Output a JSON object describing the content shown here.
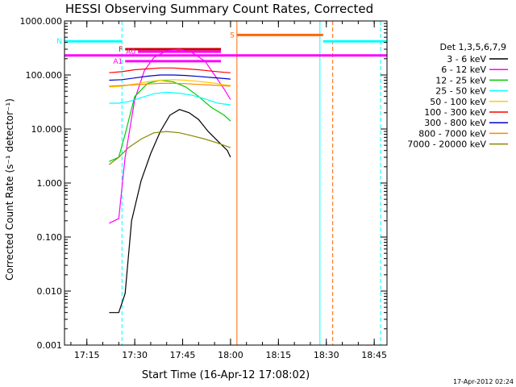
{
  "chart_data": {
    "type": "line",
    "title": "HESSI Observing Summary Count Rates, Corrected",
    "xlabel": "Start Time (16-Apr-12 17:08:02)",
    "ylabel": "Corrected Count Rate (s⁻¹ detector⁻¹)",
    "y_scale": "log",
    "ylim": [
      0.001,
      1000
    ],
    "xlim": [
      "17:08",
      "18:49"
    ],
    "x_ticks": [
      "17:15",
      "17:30",
      "17:45",
      "18:00",
      "18:15",
      "18:30",
      "18:45"
    ],
    "y_ticks": [
      "0.001",
      "0.010",
      "0.100",
      "1.000",
      "10.000",
      "100.000",
      "1000.000"
    ],
    "legend_title": "Det 1,3,5,6,7,9",
    "legend_position": "right",
    "footer": "17-Apr-2012 02:24",
    "series": [
      {
        "name": "3 - 6 keV",
        "color": "#000000",
        "x": [
          "17:22",
          "17:25",
          "17:27",
          "17:29",
          "17:32",
          "17:35",
          "17:38",
          "17:41",
          "17:44",
          "17:47",
          "17:50",
          "17:53",
          "17:56",
          "17:59",
          "18:00"
        ],
        "y": [
          0.004,
          0.004,
          0.009,
          0.2,
          1.1,
          3.5,
          9,
          18,
          23,
          20,
          15,
          9,
          6,
          4,
          3
        ]
      },
      {
        "name": "6 - 12 keV",
        "color": "#ff00ff",
        "x": [
          "17:22",
          "17:25",
          "17:27",
          "17:30",
          "17:33",
          "17:36",
          "17:40",
          "17:44",
          "17:48",
          "17:52",
          "17:55",
          "17:58",
          "18:00"
        ],
        "y": [
          0.18,
          0.22,
          3,
          35,
          120,
          210,
          280,
          300,
          260,
          180,
          100,
          55,
          35
        ]
      },
      {
        "name": "12 - 25 keV",
        "color": "#00cc00",
        "x": [
          "17:22",
          "17:25",
          "17:27",
          "17:30",
          "17:34",
          "17:38",
          "17:42",
          "17:46",
          "17:50",
          "17:54",
          "17:58",
          "18:00"
        ],
        "y": [
          2.5,
          3,
          8,
          40,
          70,
          80,
          75,
          60,
          40,
          25,
          18,
          14
        ]
      },
      {
        "name": "25 - 50 keV",
        "color": "#00ffff",
        "x": [
          "17:22",
          "17:25",
          "17:28",
          "17:32",
          "17:36",
          "17:40",
          "17:44",
          "17:48",
          "17:52",
          "17:56",
          "18:00"
        ],
        "y": [
          30,
          30,
          32,
          38,
          45,
          48,
          46,
          42,
          36,
          30,
          28
        ]
      },
      {
        "name": "50 - 100 keV",
        "color": "#ffcc00",
        "x": [
          "17:22",
          "17:26",
          "17:30",
          "17:34",
          "17:38",
          "17:42",
          "17:46",
          "17:50",
          "17:54",
          "17:58",
          "18:00"
        ],
        "y": [
          60,
          62,
          68,
          75,
          80,
          82,
          80,
          76,
          72,
          66,
          64
        ]
      },
      {
        "name": "100 - 300 keV",
        "color": "#ff0000",
        "x": [
          "17:22",
          "17:26",
          "17:30",
          "17:34",
          "17:38",
          "17:42",
          "17:46",
          "17:50",
          "17:54",
          "17:58",
          "18:00"
        ],
        "y": [
          110,
          115,
          125,
          130,
          135,
          135,
          130,
          125,
          118,
          112,
          110
        ]
      },
      {
        "name": "300 - 800 keV",
        "color": "#0000cc",
        "x": [
          "17:22",
          "17:26",
          "17:30",
          "17:34",
          "17:38",
          "17:42",
          "17:46",
          "17:50",
          "17:54",
          "17:58",
          "18:00"
        ],
        "y": [
          80,
          82,
          88,
          95,
          100,
          100,
          98,
          94,
          90,
          86,
          84
        ]
      },
      {
        "name": "800 - 7000 keV",
        "color": "#ff8800",
        "x": [
          "17:22",
          "17:26",
          "17:30",
          "17:34",
          "17:38",
          "17:42",
          "17:46",
          "17:50",
          "17:54",
          "17:58",
          "18:00"
        ],
        "y": [
          62,
          64,
          66,
          68,
          70,
          70,
          69,
          67,
          65,
          63,
          62
        ]
      },
      {
        "name": "7000 - 20000 keV",
        "color": "#888800",
        "x": [
          "17:22",
          "17:25",
          "17:28",
          "17:32",
          "17:36",
          "17:40",
          "17:44",
          "17:48",
          "17:52",
          "17:56",
          "18:00"
        ],
        "y": [
          2.2,
          3,
          4.5,
          6.5,
          8.5,
          9,
          8.5,
          7.5,
          6.5,
          5.5,
          4.5
        ]
      }
    ],
    "flag_bars": [
      {
        "label": "F",
        "color": "#cc0000",
        "x": [
          "17:27",
          "17:57"
        ],
        "y": 300
      },
      {
        "label": "N",
        "color": "#00ffff",
        "x": [
          "17:08",
          "17:26"
        ],
        "y": 420
      },
      {
        "label": "",
        "color": "#00ffff",
        "x": [
          "18:29",
          "18:49"
        ],
        "y": 420
      },
      {
        "label": "S",
        "color": "#ff6600",
        "x": [
          "18:02",
          "18:29"
        ],
        "y": 550
      },
      {
        "label": "A0",
        "color": "#ff00ff",
        "x": [
          "17:31",
          "17:57"
        ],
        "y": 270
      },
      {
        "label": "A1",
        "color": "#ff00ff",
        "x": [
          "17:27",
          "17:57"
        ],
        "y": 180
      },
      {
        "label": "",
        "color": "#ff00ff",
        "x": [
          "17:08",
          "18:49"
        ],
        "y": 230
      }
    ],
    "vertical_lines": [
      {
        "x": "17:26",
        "color": "#00ffff",
        "style": "dashed"
      },
      {
        "x": "18:02",
        "color": "#ff6600",
        "style": "solid"
      },
      {
        "x": "18:28",
        "color": "#00ffff",
        "style": "solid"
      },
      {
        "x": "18:32",
        "color": "#ff6600",
        "style": "dashed"
      },
      {
        "x": "18:47",
        "color": "#00ffff",
        "style": "dashed"
      }
    ]
  }
}
